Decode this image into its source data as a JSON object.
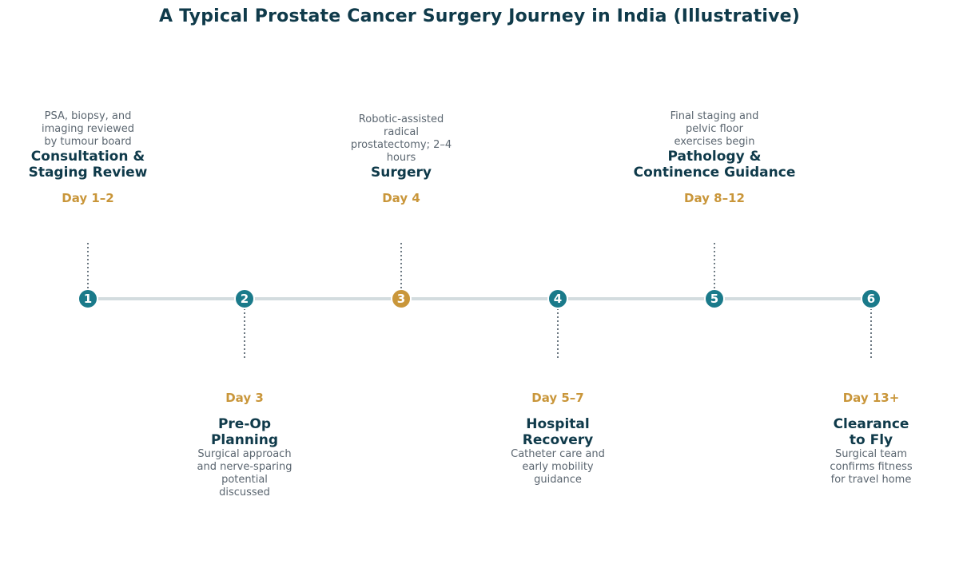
{
  "title": "A Typical Prostate Cancer Surgery Journey in India (Illustrative)",
  "colors": {
    "primary": "#1a7a8a",
    "highlight": "#c9963a",
    "heading": "#0f3a4a",
    "text": "#5b6670",
    "line": "#d3dcdf",
    "connector": "#4a5a66"
  },
  "stages": [
    {
      "number": "1",
      "day": "Day 1–2",
      "name_lines": [
        "Consultation &",
        "Staging Review"
      ],
      "desc_lines": [
        "PSA, biopsy, and",
        "imaging reviewed",
        "by tumour board"
      ],
      "highlight": false
    },
    {
      "number": "2",
      "day": "Day 3",
      "name_lines": [
        "Pre-Op",
        "Planning"
      ],
      "desc_lines": [
        "Surgical approach",
        "and nerve-sparing",
        "potential",
        "discussed"
      ],
      "highlight": false
    },
    {
      "number": "3",
      "day": "Day 4",
      "name_lines": [
        "Surgery"
      ],
      "desc_lines": [
        "Robotic-assisted",
        "radical",
        "prostatectomy; 2–4",
        "hours"
      ],
      "highlight": true
    },
    {
      "number": "4",
      "day": "Day 5–7",
      "name_lines": [
        "Hospital",
        "Recovery"
      ],
      "desc_lines": [
        "Catheter care and",
        "early mobility",
        "guidance"
      ],
      "highlight": false
    },
    {
      "number": "5",
      "day": "Day 8–12",
      "name_lines": [
        "Pathology &",
        "Continence Guidance"
      ],
      "desc_lines": [
        "Final staging and",
        "pelvic floor",
        "exercises begin"
      ],
      "highlight": false
    },
    {
      "number": "6",
      "day": "Day 13+",
      "name_lines": [
        "Clearance",
        "to Fly"
      ],
      "desc_lines": [
        "Surgical team",
        "confirms fitness",
        "for travel home"
      ],
      "highlight": false
    }
  ]
}
